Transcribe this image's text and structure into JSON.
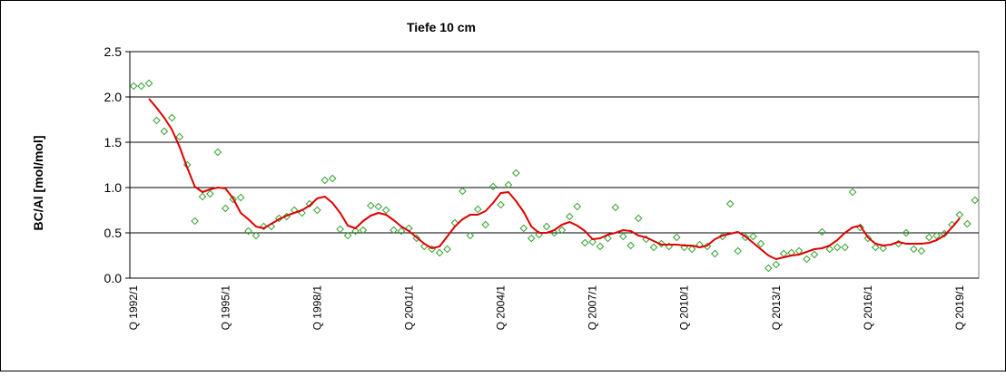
{
  "chart_data": {
    "type": "line",
    "title": "Tiefe  10 cm",
    "y_label": "BC/Al [mol/mol]",
    "categories": [
      "Q 1992/1",
      null,
      null,
      null,
      null,
      null,
      null,
      null,
      null,
      null,
      null,
      null,
      "Q 1995/1",
      null,
      null,
      null,
      null,
      null,
      null,
      null,
      null,
      null,
      null,
      null,
      "Q 1998/1",
      null,
      null,
      null,
      null,
      null,
      null,
      null,
      null,
      null,
      null,
      null,
      "Q 2001/1",
      null,
      null,
      null,
      null,
      null,
      null,
      null,
      null,
      null,
      null,
      null,
      "Q 2004/1",
      null,
      null,
      null,
      null,
      null,
      null,
      null,
      null,
      null,
      null,
      null,
      "Q 2007/1",
      null,
      null,
      null,
      null,
      null,
      null,
      null,
      null,
      null,
      null,
      null,
      "Q 2010/1",
      null,
      null,
      null,
      null,
      null,
      null,
      null,
      null,
      null,
      null,
      null,
      "Q 2013/1",
      null,
      null,
      null,
      null,
      null,
      null,
      null,
      null,
      null,
      null,
      null,
      "Q 2016/1",
      null,
      null,
      null,
      null,
      null,
      null,
      null,
      null,
      null,
      null,
      null,
      "Q 2019/1",
      null,
      null
    ],
    "series": [
      {
        "mode": "markers",
        "marker": "diamond",
        "color": "#33a02c",
        "values": [
          2.12,
          2.12,
          2.15,
          1.74,
          1.62,
          1.77,
          1.56,
          1.25,
          0.63,
          0.9,
          0.93,
          1.39,
          0.77,
          0.87,
          0.89,
          0.52,
          0.47,
          0.57,
          0.57,
          0.66,
          0.68,
          0.75,
          0.72,
          0.82,
          0.75,
          1.08,
          1.1,
          0.54,
          0.47,
          0.52,
          0.53,
          0.8,
          0.79,
          0.75,
          0.53,
          0.52,
          0.55,
          0.44,
          0.35,
          0.32,
          0.28,
          0.32,
          0.61,
          0.96,
          0.47,
          0.76,
          0.59,
          1.01,
          0.81,
          1.03,
          1.16,
          0.55,
          0.44,
          0.48,
          0.57,
          0.5,
          0.53,
          0.68,
          0.79,
          0.39,
          0.4,
          0.35,
          0.44,
          0.78,
          0.46,
          0.36,
          0.66,
          0.43,
          0.34,
          0.38,
          0.35,
          0.45,
          0.34,
          0.32,
          0.37,
          0.35,
          0.27,
          0.46,
          0.82,
          0.3,
          0.45,
          0.46,
          0.38,
          0.11,
          0.15,
          0.27,
          0.28,
          0.3,
          0.21,
          0.26,
          0.51,
          0.32,
          0.34,
          0.34,
          0.95,
          0.56,
          0.44,
          0.34,
          0.33,
          null,
          0.38,
          0.5,
          0.32,
          0.3,
          0.45,
          0.47,
          0.49,
          0.59,
          0.7,
          0.6,
          0.86
        ]
      },
      {
        "mode": "line",
        "color": "#e00000",
        "values": [
          null,
          null,
          1.98,
          1.88,
          1.77,
          1.64,
          1.45,
          1.22,
          1.01,
          0.95,
          0.98,
          1.0,
          0.99,
          0.88,
          0.72,
          0.65,
          0.57,
          0.55,
          0.6,
          0.65,
          0.69,
          0.72,
          0.75,
          0.8,
          0.88,
          0.9,
          0.83,
          0.72,
          0.58,
          0.55,
          0.63,
          0.69,
          0.72,
          0.7,
          0.64,
          0.57,
          0.52,
          0.45,
          0.38,
          0.33,
          0.35,
          0.46,
          0.57,
          0.65,
          0.7,
          0.7,
          0.74,
          0.83,
          0.94,
          0.95,
          0.85,
          0.73,
          0.57,
          0.5,
          0.5,
          0.53,
          0.59,
          0.62,
          0.58,
          0.52,
          0.43,
          0.44,
          0.48,
          0.5,
          0.53,
          0.52,
          0.47,
          0.45,
          0.41,
          0.37,
          0.37,
          0.37,
          0.36,
          0.36,
          0.34,
          0.36,
          0.43,
          0.47,
          0.49,
          0.51,
          0.46,
          0.39,
          0.32,
          0.25,
          0.21,
          0.23,
          0.25,
          0.26,
          0.29,
          0.32,
          0.33,
          0.36,
          0.42,
          0.5,
          0.56,
          0.58,
          0.45,
          0.38,
          0.36,
          0.37,
          0.4,
          0.38,
          0.38,
          0.38,
          0.39,
          0.42,
          0.47,
          0.56,
          0.66,
          null,
          null
        ]
      }
    ],
    "ylim": [
      0,
      2.5
    ],
    "yticks": [
      {
        "value": 0,
        "label": "0.0"
      },
      0.5,
      {
        "value": 1,
        "label": "1.0"
      },
      1.5,
      {
        "value": 2,
        "label": "2.0"
      },
      2.5
    ],
    "grid": true
  }
}
